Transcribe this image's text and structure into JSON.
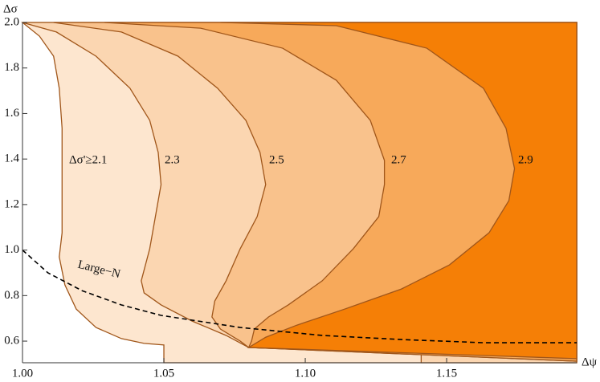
{
  "chart_data": {
    "type": "region",
    "x_label": "Δψ",
    "y_label": "Δσ",
    "xlim": [
      1.0,
      1.196
    ],
    "ylim": [
      0.505,
      2.0
    ],
    "xticks": [
      {
        "value": 1.0,
        "label": "1.00"
      },
      1.05,
      {
        "value": 1.1,
        "label": "1.10"
      },
      1.15
    ],
    "yticks": [
      0.6,
      0.8,
      {
        "value": 1.0,
        "label": "1.0"
      },
      1.2,
      1.4,
      1.6,
      1.8,
      {
        "value": 2.0,
        "label": "2.0"
      }
    ],
    "edge_color": "#a0561a",
    "series": [
      {
        "name": "Δσ'≥2.1",
        "color": "#fde6cf",
        "x": [
          1.0,
          1.006,
          1.011,
          1.013,
          1.014,
          1.014,
          1.014,
          1.014,
          1.013,
          1.015,
          1.019,
          1.026,
          1.035,
          1.043,
          1.05,
          1.05,
          1.196
        ],
        "values": [
          2.0,
          1.94,
          1.852,
          1.711,
          1.535,
          1.358,
          1.217,
          1.076,
          0.97,
          0.847,
          0.741,
          0.66,
          0.611,
          0.59,
          0.583,
          0.505,
          0.505
        ]
      },
      {
        "name": "2.3",
        "color": "#fbd6b1",
        "x": [
          1.0,
          1.012,
          1.026,
          1.038,
          1.045,
          1.048,
          1.049,
          1.047,
          1.045,
          1.042,
          1.043,
          1.049,
          1.06,
          1.072,
          1.08,
          1.141,
          1.141,
          1.196
        ],
        "values": [
          2.0,
          1.958,
          1.852,
          1.711,
          1.57,
          1.429,
          1.288,
          1.147,
          1.006,
          0.865,
          0.812,
          0.759,
          0.688,
          0.625,
          0.572,
          0.544,
          0.505,
          0.505
        ]
      },
      {
        "name": "2.5",
        "color": "#f9c28c",
        "x": [
          1.011,
          1.035,
          1.055,
          1.069,
          1.079,
          1.084,
          1.086,
          1.083,
          1.077,
          1.072,
          1.068,
          1.067,
          1.07,
          1.077,
          1.08,
          1.196
        ],
        "values": [
          2.0,
          1.958,
          1.852,
          1.711,
          1.57,
          1.429,
          1.288,
          1.147,
          1.006,
          0.865,
          0.776,
          0.706,
          0.653,
          0.6,
          0.572,
          0.512
        ]
      },
      {
        "name": "2.7",
        "color": "#f7a95a",
        "x": [
          1.029,
          1.063,
          1.092,
          1.111,
          1.123,
          1.128,
          1.128,
          1.126,
          1.117,
          1.106,
          1.094,
          1.087,
          1.082,
          1.081,
          1.08,
          1.196
        ],
        "values": [
          2.0,
          1.975,
          1.887,
          1.746,
          1.57,
          1.394,
          1.288,
          1.147,
          1.006,
          0.865,
          0.759,
          0.706,
          0.653,
          0.6,
          0.572,
          0.512
        ]
      },
      {
        "name": "2.9",
        "color": "#f57f06",
        "x": [
          1.07,
          1.111,
          1.143,
          1.163,
          1.171,
          1.174,
          1.172,
          1.165,
          1.151,
          1.134,
          1.114,
          1.097,
          1.086,
          1.08,
          1.196
        ],
        "values": [
          2.0,
          1.986,
          1.887,
          1.711,
          1.535,
          1.358,
          1.217,
          1.076,
          0.935,
          0.829,
          0.741,
          0.67,
          0.617,
          0.572,
          0.523
        ]
      },
      {
        "name": "Large−N",
        "color": "#000000",
        "dashed": true,
        "x": [
          1.0,
          1.009,
          1.021,
          1.035,
          1.049,
          1.077,
          1.106,
          1.134,
          1.163,
          1.196
        ],
        "values": [
          1.0,
          0.9,
          0.822,
          0.759,
          0.713,
          0.66,
          0.625,
          0.607,
          0.593,
          0.593
        ]
      }
    ]
  }
}
